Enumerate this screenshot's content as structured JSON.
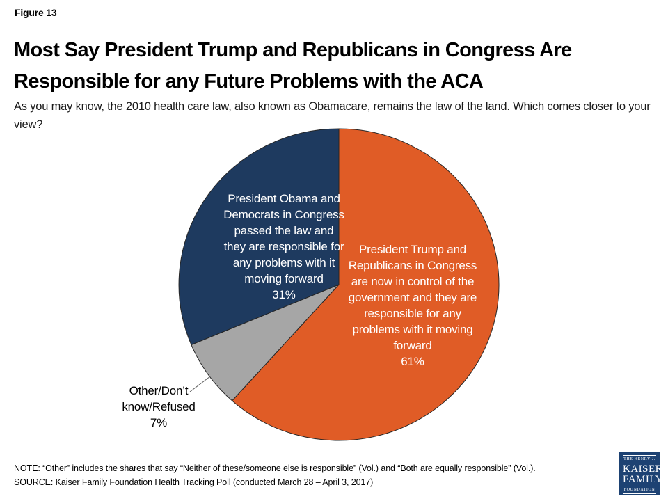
{
  "figure_label": "Figure 13",
  "title_line1": "Most Say President Trump and Republicans in Congress Are",
  "title_line2": "Responsible for any Future Problems with the ACA",
  "subtitle": "As you may know, the 2010 health care law, also known as Obamacare, remains the law of the land. Which comes closer to your view?",
  "chart_data": {
    "type": "pie",
    "start_angle_deg": 0,
    "direction": "clockwise",
    "legend_position": "labels-on-slices",
    "slices": [
      {
        "name": "trump-republicans",
        "label": "President Trump and Republicans in Congress are now in control of the government and they are responsible for any problems with it moving forward",
        "value": 61,
        "pct_display": "61%",
        "color": "#E05C26",
        "label_color": "#FFFFFF",
        "label_position": "inside",
        "label_text": "President Trump and\nRepublicans in Congress\nare now in control of the\ngovernment and they are\nresponsible for any\nproblems with it moving\nforward\n61%"
      },
      {
        "name": "other-dk-refused",
        "label": "Other/Don’t know/Refused",
        "value": 7,
        "pct_display": "7%",
        "color": "#A6A6A6",
        "label_color": "#000000",
        "label_position": "outside-left",
        "label_text": "Other/Don’t\nknow/Refused\n7%"
      },
      {
        "name": "obama-democrats",
        "label": "President Obama and Democrats in Congress passed the law and they are responsible for any problems with it moving forward",
        "value": 31,
        "pct_display": "31%",
        "color": "#1E3A5F",
        "label_color": "#FFFFFF",
        "label_position": "inside",
        "label_text": "President Obama and\nDemocrats in Congress\npassed the law and\nthey are responsible for\nany problems with it\nmoving forward\n31%"
      }
    ],
    "slice_border_color": "#262626"
  },
  "note": "NOTE: “Other” includes the shares that say “Neither of these/someone else is responsible” (Vol.) and “Both are equally responsible” (Vol.).",
  "source": "SOURCE: Kaiser Family Foundation Health Tracking Poll (conducted March 28 – April 3, 2017)",
  "logo": {
    "top_text": "THE HENRY J.",
    "name_line1": "KAISER",
    "name_line2": "FAMILY",
    "bottom_text": "FOUNDATION",
    "bg_color": "#1D4273"
  }
}
